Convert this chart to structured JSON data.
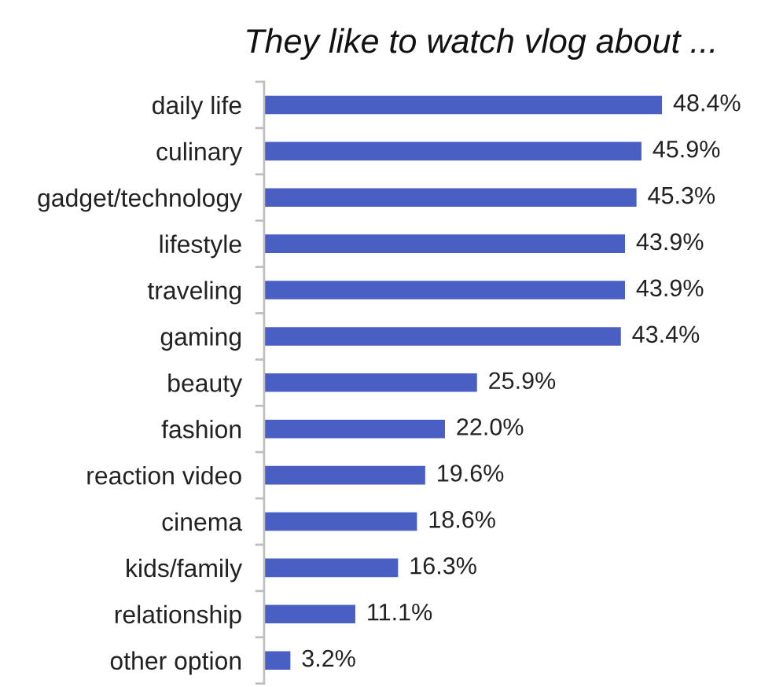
{
  "chart_data": {
    "type": "bar",
    "orientation": "horizontal",
    "title": "They like to watch vlog about ...",
    "categories": [
      "daily life",
      "culinary",
      "gadget/technology",
      "lifestyle",
      "traveling",
      "gaming",
      "beauty",
      "fashion",
      "reaction video",
      "cinema",
      "kids/family",
      "relationship",
      "other option"
    ],
    "values": [
      48.4,
      45.9,
      45.3,
      43.9,
      43.9,
      43.4,
      25.9,
      22.0,
      19.6,
      18.6,
      16.3,
      11.1,
      3.2
    ],
    "value_labels": [
      "48.4%",
      "45.9%",
      "45.3%",
      "43.9%",
      "43.9%",
      "43.4%",
      "25.9%",
      "22.0%",
      "19.6%",
      "18.6%",
      "16.3%",
      "11.1%",
      "3.2%"
    ],
    "color": "#4a5fc3",
    "tick_labels": "y"
  }
}
